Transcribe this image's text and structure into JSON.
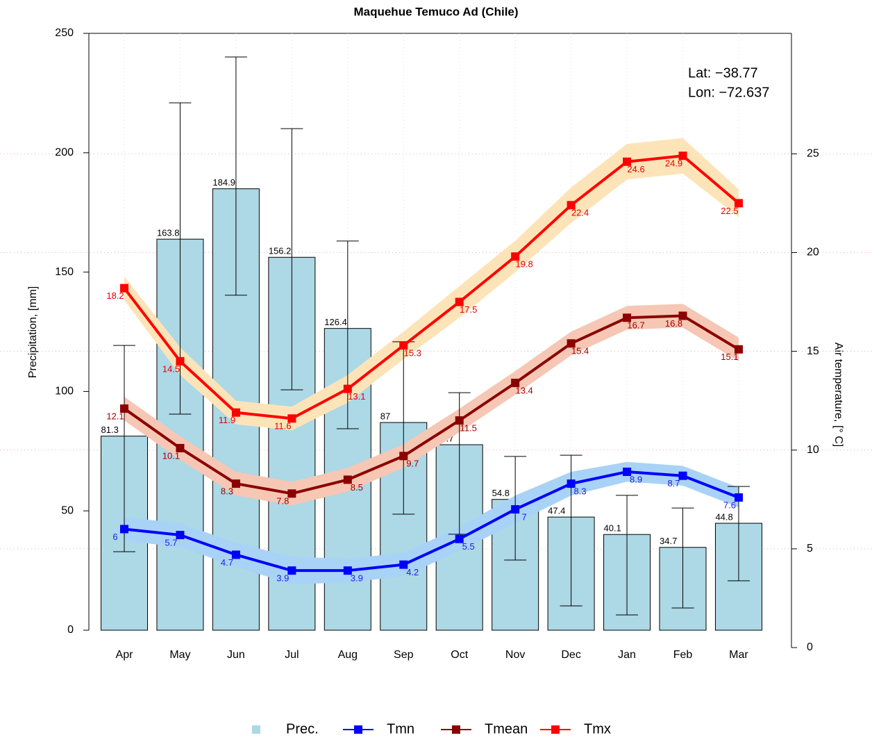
{
  "chart_data": {
    "type": "bar-line",
    "title": "Maquehue Temuco Ad (Chile)",
    "ylabel": "Precipitation, [mm]",
    "y2label": "Air temperature, [° C]",
    "annotations": [
      "Lat: −38.77",
      "Lon: −72.637"
    ],
    "categories": [
      "Apr",
      "May",
      "Jun",
      "Jul",
      "Aug",
      "Sep",
      "Oct",
      "Nov",
      "Dec",
      "Jan",
      "Feb",
      "Mar"
    ],
    "ylim": [
      0,
      250
    ],
    "yticks": [
      0,
      50,
      100,
      150,
      200,
      250
    ],
    "y2lim": [
      0,
      31.1
    ],
    "y2ticks": [
      0,
      5,
      10,
      15,
      20,
      25
    ],
    "grid": true,
    "legend": "bottom",
    "series": [
      {
        "name": "Prec.",
        "type": "bar",
        "color": "#add8e6",
        "values": [
          81.3,
          163.8,
          184.9,
          156.2,
          126.4,
          87,
          77.7,
          54.8,
          47.4,
          40.1,
          34.7,
          44.8
        ],
        "error_low": [
          32.9,
          90.5,
          140.3,
          100.7,
          84.4,
          48.6,
          40.2,
          29.4,
          10.2,
          6.4,
          9.3,
          20.7
        ],
        "error_high": [
          119.3,
          220.9,
          240.1,
          210.1,
          163.0,
          120.8,
          99.5,
          72.8,
          73.3,
          56.5,
          51.2,
          60.2
        ]
      },
      {
        "name": "Tmn",
        "type": "line",
        "axis": "y2",
        "color": "#0000ff",
        "band_color": "#a9d2f7",
        "label_color": "#2020e0",
        "values": [
          6,
          5.7,
          4.7,
          3.9,
          3.9,
          4.2,
          5.5,
          7,
          8.3,
          8.9,
          8.7,
          7.6
        ],
        "spread": [
          0.6,
          0.6,
          0.6,
          0.7,
          0.6,
          0.6,
          0.6,
          0.7,
          0.6,
          0.5,
          0.5,
          0.5
        ]
      },
      {
        "name": "Tmean",
        "type": "line",
        "axis": "y2",
        "color": "#8b0000",
        "band_color": "#f6c7b4",
        "label_color": "#a00000",
        "values": [
          12.1,
          10.1,
          8.3,
          7.8,
          8.5,
          9.7,
          11.5,
          13.4,
          15.4,
          16.7,
          16.8,
          15.1
        ],
        "spread": [
          0.6,
          0.6,
          0.6,
          0.6,
          0.6,
          0.6,
          0.6,
          0.6,
          0.6,
          0.6,
          0.6,
          0.6
        ]
      },
      {
        "name": "Tmx",
        "type": "line",
        "axis": "y2",
        "color": "#ff0000",
        "band_color": "#fde4b8",
        "label_color": "#e00000",
        "values": [
          18.2,
          14.5,
          11.9,
          11.6,
          13.1,
          15.3,
          17.5,
          19.8,
          22.4,
          24.6,
          24.9,
          22.5
        ],
        "spread": [
          0.6,
          0.7,
          0.6,
          0.6,
          0.7,
          0.7,
          0.8,
          0.8,
          0.9,
          0.9,
          0.9,
          0.7
        ]
      }
    ]
  }
}
